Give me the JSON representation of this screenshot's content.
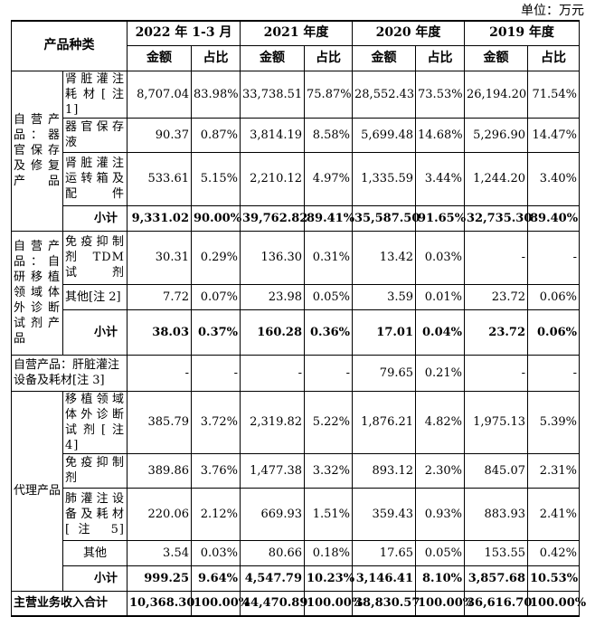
{
  "unit": "单位：万元",
  "header": {
    "category": "产品种类",
    "periods": [
      "2022 年 1-3 月",
      "2021 年度",
      "2020 年度",
      "2019 年度"
    ],
    "amount": "金额",
    "ratio": "占比"
  },
  "groups": [
    {
      "label": "自营产品：器官保存及修复产品",
      "rows": [
        {
          "name": "肾脏灌注耗材[注 1]",
          "values": [
            "8,707.04",
            "83.98%",
            "33,738.51",
            "75.87%",
            "28,552.43",
            "73.53%",
            "26,194.20",
            "71.54%"
          ]
        },
        {
          "name": "器官保存液",
          "values": [
            "90.37",
            "0.87%",
            "3,814.19",
            "8.58%",
            "5,699.48",
            "14.68%",
            "5,296.90",
            "14.47%"
          ]
        },
        {
          "name": "肾脏灌注运转箱及配件",
          "values": [
            "533.61",
            "5.15%",
            "2,210.12",
            "4.97%",
            "1,335.59",
            "3.44%",
            "1,244.20",
            "3.40%"
          ]
        }
      ],
      "subtotal": {
        "name": "小计",
        "values": [
          "9,331.02",
          "90.00%",
          "39,762.82",
          "89.41%",
          "35,587.50",
          "91.65%",
          "32,735.30",
          "89.40%"
        ]
      }
    },
    {
      "label": "自营产品：自研移植领域体外诊断试剂产品",
      "rows": [
        {
          "name": "免疫抑制剂 TDM 试剂",
          "values": [
            "30.31",
            "0.29%",
            "136.30",
            "0.31%",
            "13.42",
            "0.03%",
            "-",
            "-"
          ]
        },
        {
          "name": "其他[注 2]",
          "values": [
            "7.72",
            "0.07%",
            "23.98",
            "0.05%",
            "3.59",
            "0.01%",
            "23.72",
            "0.06%"
          ]
        }
      ],
      "subtotal": {
        "name": "小计",
        "values": [
          "38.03",
          "0.37%",
          "160.28",
          "0.36%",
          "17.01",
          "0.04%",
          "23.72",
          "0.06%"
        ]
      }
    },
    {
      "label": "自营产品：肝脏灌注设备及耗材[注 3]",
      "values": [
        "-",
        "-",
        "-",
        "-",
        "79.65",
        "0.21%",
        "-",
        "-"
      ]
    },
    {
      "label": "代理产品",
      "rows": [
        {
          "name": "移植领域体外诊断试剂[注 4]",
          "values": [
            "385.79",
            "3.72%",
            "2,319.82",
            "5.22%",
            "1,876.21",
            "4.82%",
            "1,975.13",
            "5.39%"
          ]
        },
        {
          "name": "免疫抑制剂",
          "values": [
            "389.86",
            "3.76%",
            "1,477.38",
            "3.32%",
            "893.12",
            "2.30%",
            "845.07",
            "2.31%"
          ]
        },
        {
          "name": "肺灌注设备及耗材[注 5]",
          "values": [
            "220.06",
            "2.12%",
            "669.93",
            "1.51%",
            "359.43",
            "0.93%",
            "883.93",
            "2.41%"
          ]
        },
        {
          "name": "其他",
          "values": [
            "3.54",
            "0.03%",
            "80.66",
            "0.18%",
            "17.65",
            "0.05%",
            "153.55",
            "0.42%"
          ]
        }
      ],
      "subtotal": {
        "name": "小计",
        "values": [
          "999.25",
          "9.64%",
          "4,547.79",
          "10.23%",
          "3,146.41",
          "8.10%",
          "3,857.68",
          "10.53%"
        ]
      }
    }
  ],
  "total": {
    "name": "主营业务收入合计",
    "values": [
      "10,368.30",
      "100.00%",
      "44,470.89",
      "100.00%",
      "38,830.57",
      "100.00%",
      "36,616.70",
      "100.00%"
    ]
  }
}
